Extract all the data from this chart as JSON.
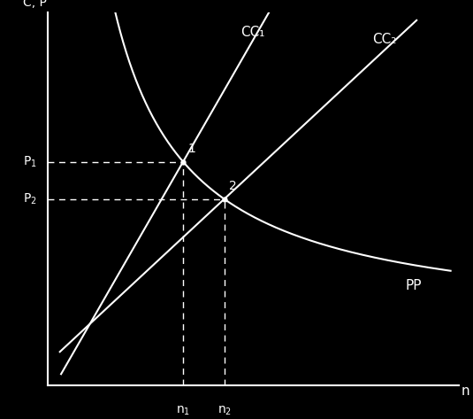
{
  "background_color": "#000000",
  "foreground_color": "#ffffff",
  "fig_width": 5.35,
  "fig_height": 4.73,
  "dpi": 100,
  "x_label": "n",
  "y_label": "C, P",
  "n1": 0.33,
  "n2": 0.43,
  "P1": 0.6,
  "P2": 0.5,
  "CC1_label": "CC₁",
  "CC2_label": "CC₂",
  "PP_label": "PP",
  "point1_label": "1",
  "point2_label": "2",
  "pp_a": 0.18,
  "pp_b": 0.02,
  "pp_c": 0.05
}
